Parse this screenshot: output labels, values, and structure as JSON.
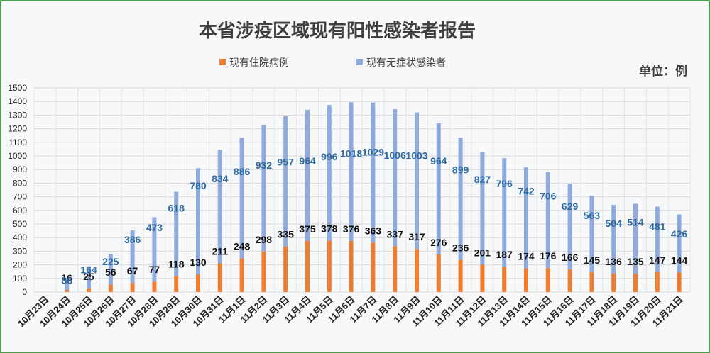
{
  "chart_data": {
    "type": "bar",
    "stacked": true,
    "title": "本省涉疫区域现有阳性感染者报告",
    "unit_label": "单位：例",
    "ylim": [
      0,
      1500
    ],
    "ytick_step": 100,
    "grid": true,
    "legend_position": "top-center",
    "categories": [
      "10月23日",
      "10月24日",
      "10月25日",
      "10月26日",
      "10月27日",
      "10月28日",
      "10月29日",
      "10月30日",
      "10月31日",
      "11月1日",
      "11月2日",
      "11月3日",
      "11月4日",
      "11月5日",
      "11月6日",
      "11月7日",
      "11月8日",
      "11月9日",
      "11月10日",
      "11月11日",
      "11月12日",
      "11月13日",
      "11月14日",
      "11月15日",
      "11月16日",
      "11月17日",
      "11月18日",
      "11月19日",
      "11月20日",
      "11月21日"
    ],
    "series": [
      {
        "name": "现有住院病例",
        "color": "#ed7d31",
        "values": [
          null,
          16,
          25,
          56,
          67,
          77,
          118,
          130,
          211,
          248,
          298,
          335,
          375,
          378,
          376,
          363,
          337,
          317,
          276,
          236,
          201,
          187,
          174,
          176,
          166,
          145,
          136,
          135,
          147,
          144
        ]
      },
      {
        "name": "现有无症状感染者",
        "color": "#8faadc",
        "values": [
          null,
          86,
          164,
          225,
          386,
          473,
          618,
          780,
          834,
          886,
          932,
          957,
          964,
          996,
          1018,
          1029,
          1006,
          1003,
          964,
          899,
          827,
          796,
          742,
          706,
          629,
          563,
          504,
          514,
          481,
          426
        ]
      }
    ]
  }
}
